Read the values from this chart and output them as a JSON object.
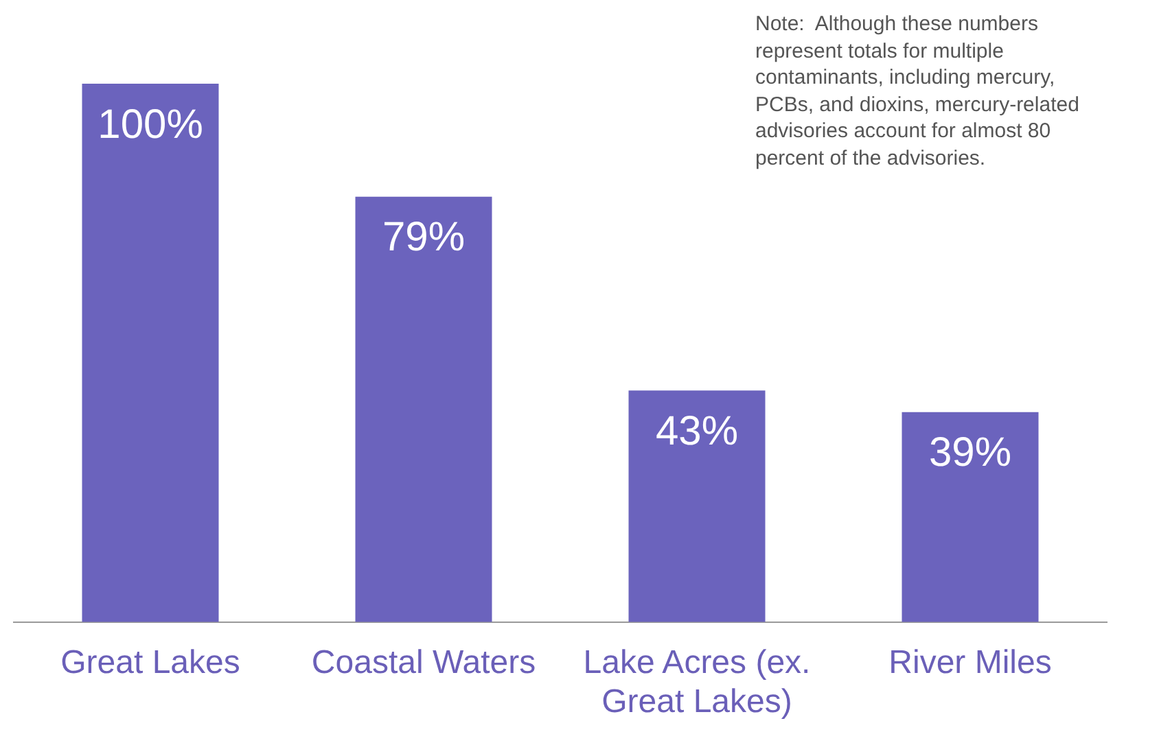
{
  "chart_data": {
    "type": "bar",
    "categories": [
      "Great Lakes",
      "Coastal Waters",
      "Lake Acres (ex. Great Lakes)",
      "River Miles"
    ],
    "values": [
      100,
      79,
      43,
      39
    ],
    "value_labels": [
      "100%",
      "79%",
      "43%",
      "39%"
    ],
    "color": "#6b63bd",
    "tick_labels": "x",
    "annotations": [
      "Note:  Although these numbers represent totals for multiple contaminants, including mercury, PCBs, and dioxins, mercury-related advisories account for almost 80 percent of the advisories."
    ],
    "grid": false,
    "legend": false
  }
}
